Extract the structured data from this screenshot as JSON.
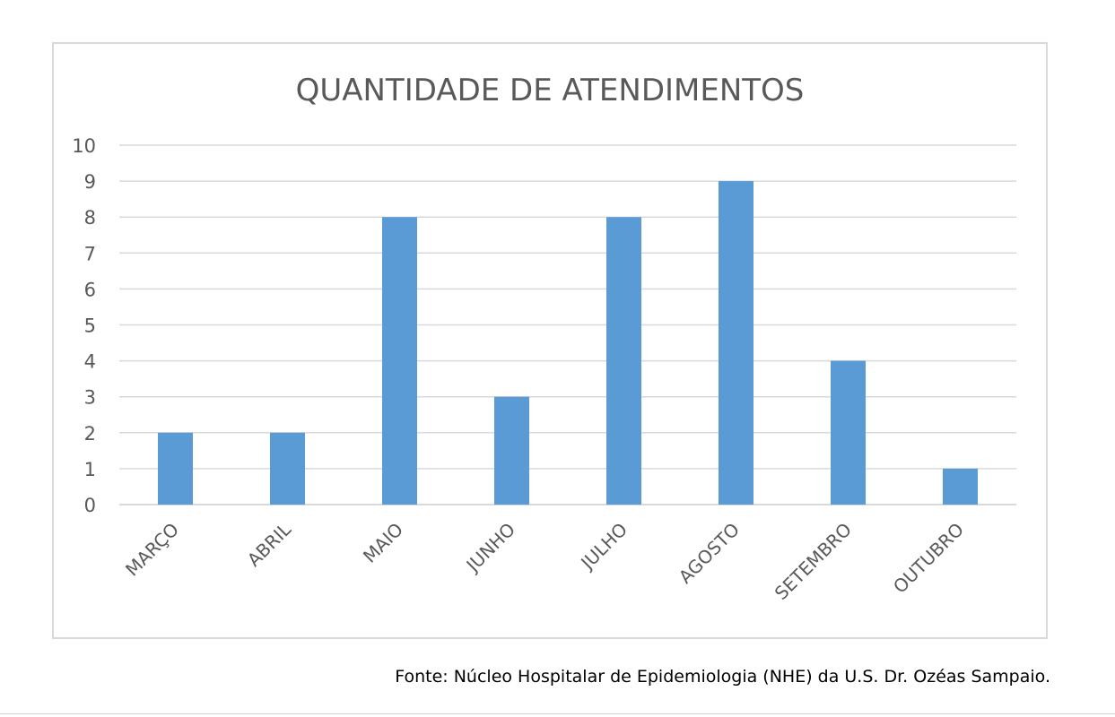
{
  "chart_data": {
    "type": "bar",
    "title": "QUANTIDADE DE ATENDIMENTOS",
    "categories": [
      "MARÇO",
      "ABRIL",
      "MAIO",
      "JUNHO",
      "JULHO",
      "AGOSTO",
      "SETEMBRO",
      "OUTUBRO"
    ],
    "values": [
      2,
      2,
      8,
      3,
      8,
      9,
      4,
      1
    ],
    "ylim": [
      0,
      10
    ],
    "yticks": [
      0,
      1,
      2,
      3,
      4,
      5,
      6,
      7,
      8,
      9,
      10
    ],
    "grid": true,
    "legend": "none",
    "bar_color": "#5b9bd5",
    "grid_color": "#d9d9d9",
    "text_color": "#595959"
  },
  "source_note": "Fonte: Núcleo Hospitalar de Epidemiologia (NHE) da U.S. Dr. Ozéas Sampaio."
}
